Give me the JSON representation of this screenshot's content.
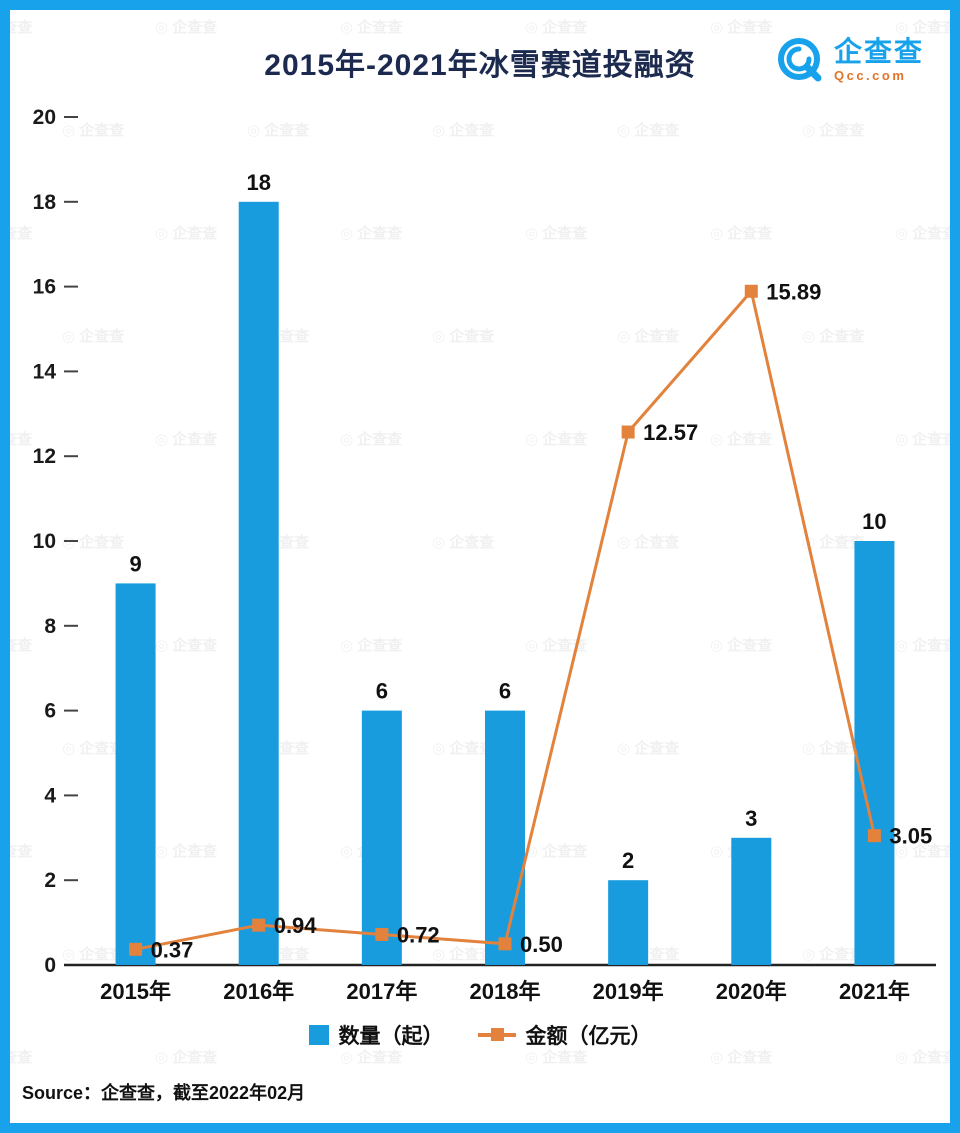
{
  "header": {
    "title": "2015年-2021年冰雪赛道投融资",
    "logo": {
      "name": "企查查",
      "domain": "Qcc.com"
    }
  },
  "chart_data": {
    "type": "combo",
    "title": "2015年-2021年冰雪赛道投融资",
    "categories": [
      "2015年",
      "2016年",
      "2017年",
      "2018年",
      "2019年",
      "2020年",
      "2021年"
    ],
    "series": [
      {
        "name": "数量（起）",
        "type": "bar",
        "color": "#189CDE",
        "values": [
          9,
          18,
          6,
          6,
          2,
          3,
          10
        ]
      },
      {
        "name": "金额（亿元）",
        "type": "line",
        "color": "#E2823C",
        "values": [
          0.37,
          0.94,
          0.72,
          0.5,
          12.57,
          15.89,
          3.05
        ],
        "labels": [
          "0.37",
          "0.94",
          "0.72",
          "0.50",
          "12.57",
          "15.89",
          "3.05"
        ]
      }
    ],
    "ylim": [
      0,
      20
    ],
    "ytick_step": 2,
    "grid": false,
    "legend_position": "bottom"
  },
  "legend": {
    "items": [
      {
        "label": "数量（起）",
        "color": "#189CDE",
        "marker": "square"
      },
      {
        "label": "金额（亿元）",
        "color": "#E2823C",
        "marker": "line-square"
      }
    ]
  },
  "footer": {
    "source": "Source：企查查，截至2022年02月"
  },
  "watermark": {
    "text": "企查查"
  },
  "colors": {
    "border": "#18A2EC",
    "bar": "#189CDE",
    "line": "#E2823C",
    "title": "#1B2A4E",
    "logo_blue": "#18A2EC",
    "logo_orange": "#E2742A",
    "axis": "#222222"
  }
}
